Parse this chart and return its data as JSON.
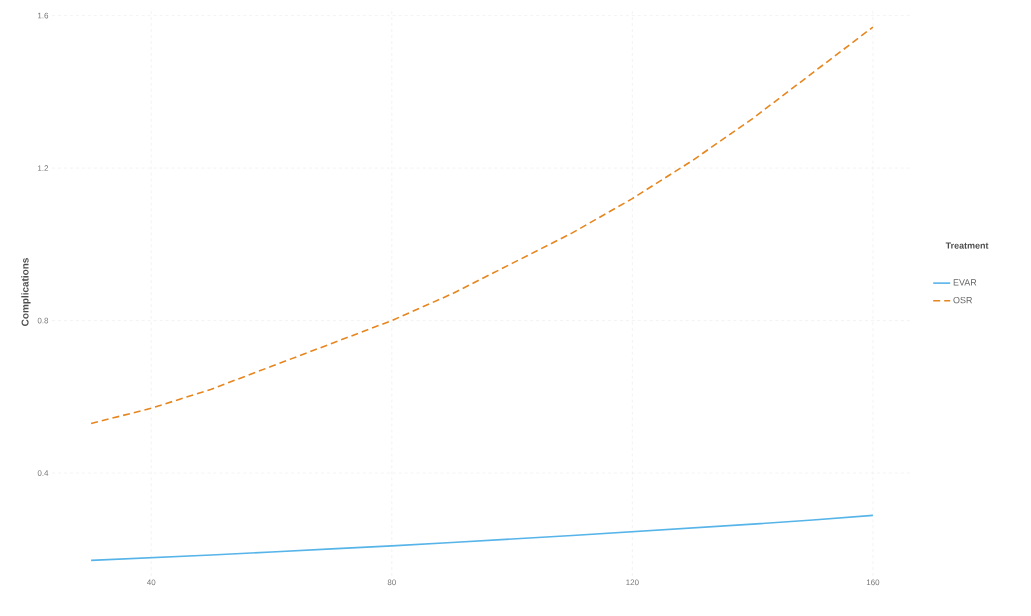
{
  "chart_data": {
    "type": "line",
    "ylabel": "Complications",
    "legend_title": "Treatment",
    "legend": "right",
    "grid": true,
    "x": [
      30,
      40,
      50,
      60,
      70,
      80,
      90,
      100,
      110,
      120,
      130,
      140,
      150,
      160
    ],
    "series": [
      {
        "name": "EVAR",
        "color": "#56b4e9",
        "line_style": "solid",
        "values": [
          0.171,
          0.178,
          0.185,
          0.193,
          0.201,
          0.209,
          0.218,
          0.227,
          0.236,
          0.246,
          0.256,
          0.266,
          0.277,
          0.289
        ]
      },
      {
        "name": "OSR",
        "color": "#e6861f",
        "line_style": "dashed",
        "values": [
          0.53,
          0.57,
          0.62,
          0.68,
          0.74,
          0.8,
          0.87,
          0.95,
          1.03,
          1.12,
          1.22,
          1.33,
          1.45,
          1.57
        ]
      }
    ],
    "xlim": [
      23.5,
      166.5
    ],
    "ylim": [
      0.13,
      1.62
    ],
    "xticks": [
      40,
      80,
      120,
      160
    ],
    "yticks": [
      0.4,
      0.8,
      1.2,
      1.6
    ]
  }
}
